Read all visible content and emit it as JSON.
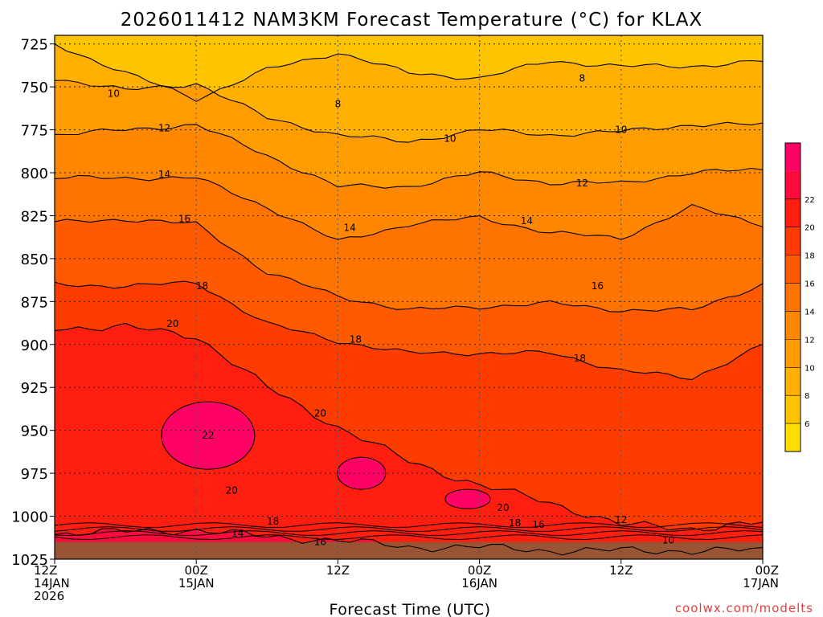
{
  "chart_data": {
    "type": "heatmap",
    "title": "2026011412 NAM3KM Forecast Temperature (°C) for KLAX",
    "xlabel": "Forecast Time (UTC)",
    "ylabel": "",
    "credit": "coolwx.com/modelts",
    "x_ticks": [
      {
        "hour": 0,
        "line1": "12Z",
        "line2": "14JAN",
        "line3": "2026"
      },
      {
        "hour": 12,
        "line1": "00Z",
        "line2": "15JAN",
        "line3": ""
      },
      {
        "hour": 24,
        "line1": "12Z",
        "line2": "",
        "line3": ""
      },
      {
        "hour": 36,
        "line1": "00Z",
        "line2": "16JAN",
        "line3": ""
      },
      {
        "hour": 48,
        "line1": "12Z",
        "line2": "",
        "line3": ""
      },
      {
        "hour": 60,
        "line1": "00Z",
        "line2": "17JAN",
        "line3": ""
      }
    ],
    "xlim": [
      0,
      60
    ],
    "y_ticks": [
      "725",
      "750",
      "775",
      "800",
      "825",
      "850",
      "875",
      "900",
      "925",
      "950",
      "975",
      "1000",
      "1025"
    ],
    "ylim": [
      1025,
      720
    ],
    "colorbar": {
      "levels": [
        4,
        6,
        8,
        10,
        12,
        14,
        16,
        18,
        20,
        22,
        24
      ],
      "labels": [
        "6",
        "8",
        "10",
        "12",
        "14",
        "16",
        "18",
        "20",
        "22"
      ],
      "colors": [
        "#ffdd00",
        "#ffc400",
        "#ffb000",
        "#ff9c00",
        "#ff8800",
        "#ff7400",
        "#ff5a00",
        "#ff3c00",
        "#ff1e10",
        "#ff0a3c",
        "#ff0064"
      ]
    },
    "isotherms": [
      {
        "value": 8,
        "pressure": [
          725,
          742,
          757,
          740,
          730,
          742,
          745,
          735,
          738,
          738,
          735
        ]
      },
      {
        "value": 10,
        "pressure": [
          745,
          752,
          748,
          768,
          778,
          782,
          775,
          778,
          776,
          772,
          772
        ]
      },
      {
        "value": 12,
        "pressure": [
          778,
          775,
          772,
          790,
          808,
          808,
          800,
          806,
          806,
          800,
          798
        ]
      },
      {
        "value": 14,
        "pressure": [
          803,
          803,
          803,
          820,
          840,
          830,
          826,
          835,
          838,
          820,
          830
        ]
      },
      {
        "value": 16,
        "pressure": [
          829,
          827,
          830,
          858,
          872,
          880,
          878,
          876,
          880,
          880,
          865
        ]
      },
      {
        "value": 18,
        "pressure": [
          865,
          866,
          864,
          888,
          898,
          905,
          905,
          905,
          915,
          920,
          900
        ]
      },
      {
        "value": 20,
        "pressure": [
          890,
          890,
          895,
          925,
          948,
          968,
          982,
          992,
          1005,
          1007,
          1004
        ]
      },
      {
        "value": 22,
        "pressure": [
          1010,
          1009,
          1008,
          1012,
          1014,
          1018,
          1018,
          1020,
          1020,
          1020,
          1020
        ]
      }
    ],
    "isotherm_hours": [
      0,
      6,
      12,
      18,
      24,
      30,
      36,
      42,
      48,
      54,
      60
    ],
    "warm_cores": [
      {
        "label": "22",
        "hour": 13,
        "pressure": 953
      },
      {
        "label": "",
        "hour": 26,
        "pressure": 975
      },
      {
        "label": "",
        "hour": 35,
        "pressure": 990
      }
    ],
    "contour_labels": [
      {
        "text": "8",
        "hour": 24.0,
        "pressure": 760
      },
      {
        "text": "8",
        "hour": 44.7,
        "pressure": 745
      },
      {
        "text": "10",
        "hour": 5.0,
        "pressure": 754
      },
      {
        "text": "10",
        "hour": 33.5,
        "pressure": 780
      },
      {
        "text": "10",
        "hour": 48.0,
        "pressure": 775
      },
      {
        "text": "10",
        "hour": 52.0,
        "pressure": 1014
      },
      {
        "text": "12",
        "hour": 9.3,
        "pressure": 774
      },
      {
        "text": "12",
        "hour": 44.7,
        "pressure": 806
      },
      {
        "text": "12",
        "hour": 48.0,
        "pressure": 1002
      },
      {
        "text": "14",
        "hour": 9.3,
        "pressure": 801
      },
      {
        "text": "14",
        "hour": 25.0,
        "pressure": 832
      },
      {
        "text": "14",
        "hour": 40.0,
        "pressure": 828
      },
      {
        "text": "14",
        "hour": 15.5,
        "pressure": 1010
      },
      {
        "text": "16",
        "hour": 11.0,
        "pressure": 827
      },
      {
        "text": "16",
        "hour": 46.0,
        "pressure": 866
      },
      {
        "text": "16",
        "hour": 22.5,
        "pressure": 1015
      },
      {
        "text": "16",
        "hour": 41.0,
        "pressure": 1005
      },
      {
        "text": "18",
        "hour": 12.5,
        "pressure": 866
      },
      {
        "text": "18",
        "hour": 25.5,
        "pressure": 897
      },
      {
        "text": "18",
        "hour": 44.5,
        "pressure": 908
      },
      {
        "text": "18",
        "hour": 18.5,
        "pressure": 1003
      },
      {
        "text": "18",
        "hour": 39.0,
        "pressure": 1004
      },
      {
        "text": "20",
        "hour": 10.0,
        "pressure": 888
      },
      {
        "text": "20",
        "hour": 22.5,
        "pressure": 940
      },
      {
        "text": "20",
        "hour": 15.0,
        "pressure": 985
      },
      {
        "text": "20",
        "hour": 38.0,
        "pressure": 995
      },
      {
        "text": "22",
        "hour": 13.0,
        "pressure": 953
      }
    ],
    "surface_pressure": 1015,
    "surface_color": "#995533"
  }
}
